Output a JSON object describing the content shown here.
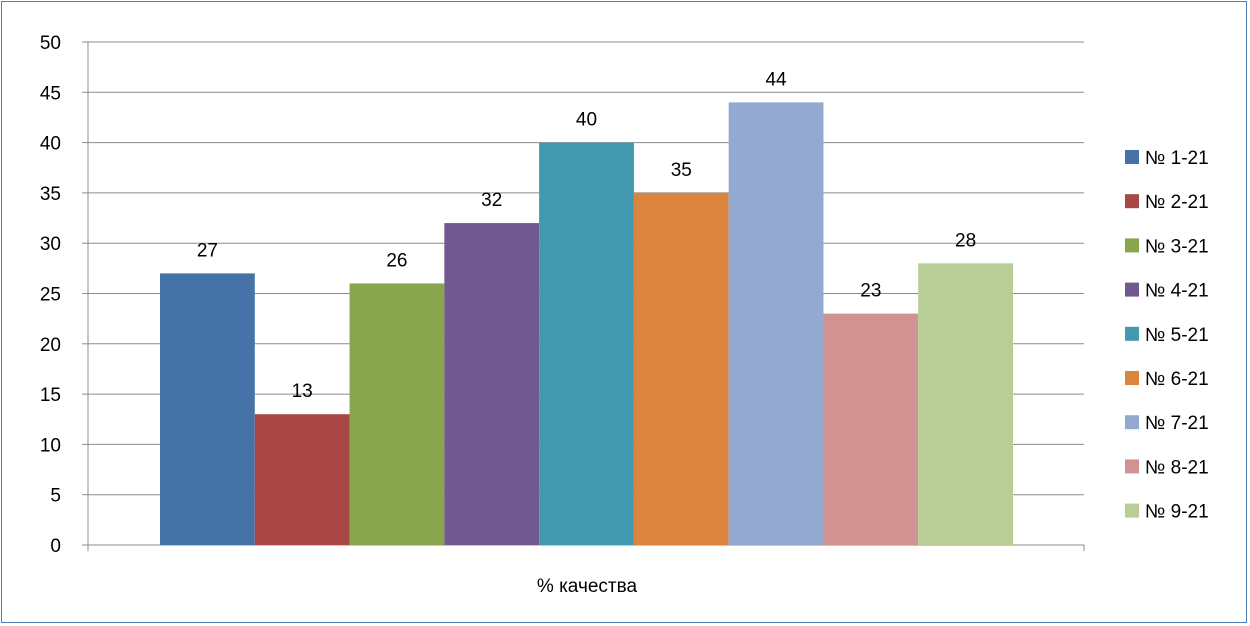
{
  "chart_data": {
    "type": "bar",
    "title": "",
    "xlabel": "% качества",
    "ylabel": "",
    "ylim": [
      0,
      50
    ],
    "yticks": [
      0,
      5,
      10,
      15,
      20,
      25,
      30,
      35,
      40,
      45,
      50
    ],
    "grid": true,
    "legend_position": "right",
    "categories": [
      "% качества"
    ],
    "series": [
      {
        "name": "№ 1-21",
        "values": [
          27
        ],
        "color": "#4572a7"
      },
      {
        "name": "№ 2-21",
        "values": [
          13
        ],
        "color": "#aa4643"
      },
      {
        "name": "№ 3-21",
        "values": [
          26
        ],
        "color": "#89a54e"
      },
      {
        "name": "№ 4-21",
        "values": [
          32
        ],
        "color": "#71588f"
      },
      {
        "name": "№ 5-21",
        "values": [
          40
        ],
        "color": "#4198af"
      },
      {
        "name": "№ 6-21",
        "values": [
          35
        ],
        "color": "#db843d"
      },
      {
        "name": "№ 7-21",
        "values": [
          44
        ],
        "color": "#93a9cf"
      },
      {
        "name": "№ 8-21",
        "values": [
          23
        ],
        "color": "#d19392"
      },
      {
        "name": "№ 9-21",
        "values": [
          28
        ],
        "color": "#b9cd96"
      }
    ]
  }
}
